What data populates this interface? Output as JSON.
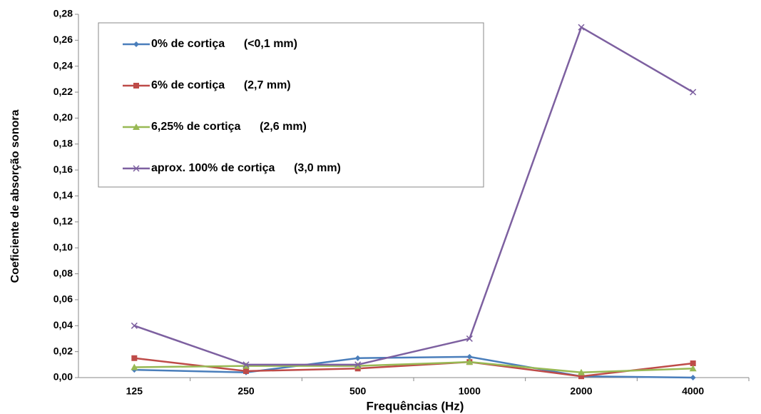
{
  "chart_data": {
    "type": "line",
    "x_label": "Frequências (Hz)",
    "y_label": "Coeficiente de absorção sonora",
    "categories": [
      "125",
      "250",
      "500",
      "1000",
      "2000",
      "4000"
    ],
    "series": [
      {
        "name": "0% de cortiça      (<0,1 mm)",
        "color": "#4a7ebb",
        "values": [
          0.006,
          0.004,
          0.015,
          0.016,
          0.001,
          0.0
        ]
      },
      {
        "name": "6% de cortiça      (2,7 mm)",
        "color": "#be4b48",
        "values": [
          0.015,
          0.005,
          0.007,
          0.012,
          0.001,
          0.011
        ]
      },
      {
        "name": "6,25% de cortiça      (2,6 mm)",
        "color": "#98b954",
        "values": [
          0.008,
          0.009,
          0.009,
          0.012,
          0.004,
          0.007
        ]
      },
      {
        "name": "aprox. 100% de cortiça      (3,0 mm)",
        "color": "#7d60a0",
        "values": [
          0.04,
          0.01,
          0.01,
          0.03,
          0.27,
          0.22
        ]
      }
    ],
    "ylim": [
      0,
      0.28
    ],
    "yticks": [
      {
        "value": 0,
        "label": "0,00"
      },
      {
        "value": 0.02,
        "label": "0,02"
      },
      {
        "value": 0.04,
        "label": "0,04"
      },
      {
        "value": 0.06,
        "label": "0,06"
      },
      {
        "value": 0.08,
        "label": "0,08"
      },
      {
        "value": 0.1,
        "label": "0,10"
      },
      {
        "value": 0.12,
        "label": "0,12"
      },
      {
        "value": 0.14,
        "label": "0,14"
      },
      {
        "value": 0.16,
        "label": "0,16"
      },
      {
        "value": 0.18,
        "label": "0,18"
      },
      {
        "value": 0.2,
        "label": "0,20"
      },
      {
        "value": 0.22,
        "label": "0,22"
      },
      {
        "value": 0.24,
        "label": "0,24"
      },
      {
        "value": 0.26,
        "label": "0,26"
      },
      {
        "value": 0.28,
        "label": "0,28"
      }
    ],
    "grid": false
  }
}
